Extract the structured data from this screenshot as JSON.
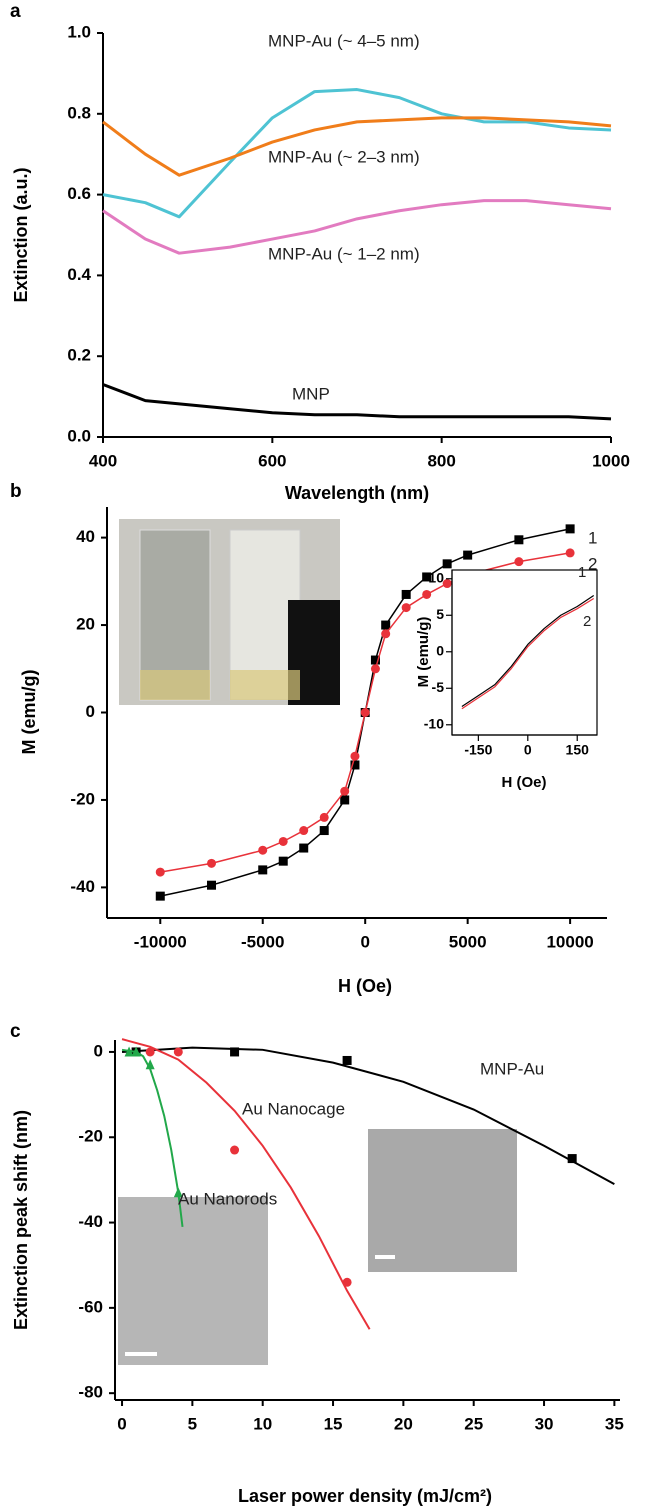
{
  "chart_data": [
    {
      "type": "line",
      "label": "a",
      "x_label": "Wavelength (nm)",
      "y_label": "Extinction (a.u.)",
      "xlim": [
        400,
        1000
      ],
      "ylim": [
        0,
        1.0
      ],
      "xticks": [
        400,
        600,
        800,
        1000
      ],
      "yticks": [
        {
          "value": 0,
          "label": "0.0"
        },
        0.2,
        0.4,
        0.6,
        0.8,
        {
          "value": 1.0,
          "label": "1.0"
        }
      ],
      "x": [
        400,
        450,
        490,
        550,
        600,
        650,
        700,
        750,
        800,
        850,
        900,
        950,
        1000
      ],
      "series": [
        {
          "name": "MNP-Au (~ 4–5 nm)",
          "color": "#4ec3d3",
          "values": [
            0.6,
            0.58,
            0.545,
            0.68,
            0.79,
            0.855,
            0.86,
            0.84,
            0.8,
            0.78,
            0.78,
            0.765,
            0.76
          ]
        },
        {
          "name": "MNP-Au (~ 2–3 nm)",
          "color": "#f07d1a",
          "values": [
            0.78,
            0.7,
            0.648,
            0.69,
            0.73,
            0.76,
            0.78,
            0.785,
            0.79,
            0.79,
            0.785,
            0.78,
            0.77
          ]
        },
        {
          "name": "MNP-Au (~ 1–2 nm)",
          "color": "#e27bc0",
          "values": [
            0.56,
            0.49,
            0.455,
            0.47,
            0.49,
            0.51,
            0.54,
            0.56,
            0.575,
            0.585,
            0.585,
            0.575,
            0.565
          ]
        },
        {
          "name": "MNP",
          "color": "#000000",
          "values": [
            0.13,
            0.09,
            0.082,
            0.07,
            0.06,
            0.055,
            0.055,
            0.05,
            0.05,
            0.05,
            0.05,
            0.05,
            0.045
          ]
        }
      ]
    },
    {
      "type": "line",
      "label": "b",
      "x_label": "H (Oe)",
      "y_label": "M (emu/g)",
      "xlim": [
        -12600,
        11800
      ],
      "ylim": [
        -47,
        47
      ],
      "xticks": [
        -10000,
        -5000,
        0,
        5000,
        10000
      ],
      "yticks": [
        -40,
        -20,
        0,
        20,
        40
      ],
      "x": [
        -10000,
        -7500,
        -5000,
        -4000,
        -3000,
        -2000,
        -1000,
        -500,
        0,
        500,
        1000,
        2000,
        3000,
        4000,
        5000,
        7500,
        10000
      ],
      "series": [
        {
          "name": "1",
          "color": "#000000",
          "marker": "square",
          "values": [
            -42,
            -39.5,
            -36,
            -34,
            -31,
            -27,
            -20,
            -12,
            0,
            12,
            20,
            27,
            31,
            34,
            36,
            39.5,
            42
          ]
        },
        {
          "name": "2",
          "color": "#e8323a",
          "marker": "circle",
          "values": [
            -36.5,
            -34.5,
            -31.5,
            -29.5,
            -27,
            -24,
            -18,
            -10,
            0,
            10,
            18,
            24,
            27,
            29.5,
            31.5,
            34.5,
            36.5
          ]
        }
      ],
      "inset": {
        "type": "line",
        "x_label": "H (Oe)",
        "y_label": "M (emu/g)",
        "xlim": [
          -230,
          210
        ],
        "ylim": [
          -11.4,
          11.2
        ],
        "xticks": [
          -150,
          0,
          150
        ],
        "yticks": [
          -10,
          -5,
          0,
          5,
          10
        ],
        "x": [
          -200,
          -150,
          -100,
          -50,
          0,
          50,
          100,
          150,
          200
        ],
        "series": [
          {
            "name": "1",
            "color": "#000000",
            "values": [
              -7.5,
              -6,
              -4.5,
              -2,
              1,
              3.2,
              5,
              6.2,
              7.7
            ]
          },
          {
            "name": "2",
            "color": "#e8323a",
            "values": [
              -7.8,
              -6.3,
              -4.8,
              -2.3,
              0.7,
              2.9,
              4.7,
              5.9,
              7.3
            ]
          }
        ]
      }
    },
    {
      "type": "scatter",
      "label": "c",
      "x_label": "Laser power density (mJ/cm²)",
      "y_label": "Extinction peak shift (nm)",
      "xlim": [
        -0.5,
        35.4
      ],
      "ylim": [
        -81.6,
        2.8
      ],
      "xticks": [
        0,
        5,
        10,
        15,
        20,
        25,
        30,
        35
      ],
      "yticks": [
        -80,
        -60,
        -40,
        -20,
        0
      ],
      "series": [
        {
          "name": "MNP-Au",
          "color": "#000000",
          "marker": "square",
          "x": [
            1,
            8,
            16,
            32
          ],
          "values": [
            0,
            0,
            -2,
            -25
          ],
          "fit_x": [
            0,
            5,
            10,
            15,
            20,
            25,
            30,
            35
          ],
          "fit_values": [
            0,
            1,
            0.5,
            -2.5,
            -7,
            -13.5,
            -22,
            -31
          ]
        },
        {
          "name": "Au Nanocage",
          "color": "#e8323a",
          "marker": "circle",
          "x": [
            2,
            4,
            8,
            16
          ],
          "values": [
            0,
            0,
            -23,
            -54
          ],
          "fit_x": [
            0,
            2,
            4,
            6,
            8,
            10,
            12,
            14,
            16,
            17.6
          ],
          "fit_values": [
            3,
            1.2,
            -1.8,
            -7.2,
            -13.8,
            -22,
            -31.8,
            -43.2,
            -56,
            -65
          ]
        },
        {
          "name": "Au Nanorods",
          "color": "#22a84a",
          "marker": "triangle",
          "x": [
            0.5,
            1,
            2,
            4
          ],
          "values": [
            0,
            0,
            -3,
            -33
          ],
          "fit_x": [
            0,
            1,
            1.5,
            2,
            2.5,
            3,
            3.5,
            4,
            4.3
          ],
          "fit_values": [
            0.5,
            0,
            -1,
            -4,
            -9,
            -15,
            -23,
            -33,
            -41
          ]
        }
      ]
    }
  ]
}
